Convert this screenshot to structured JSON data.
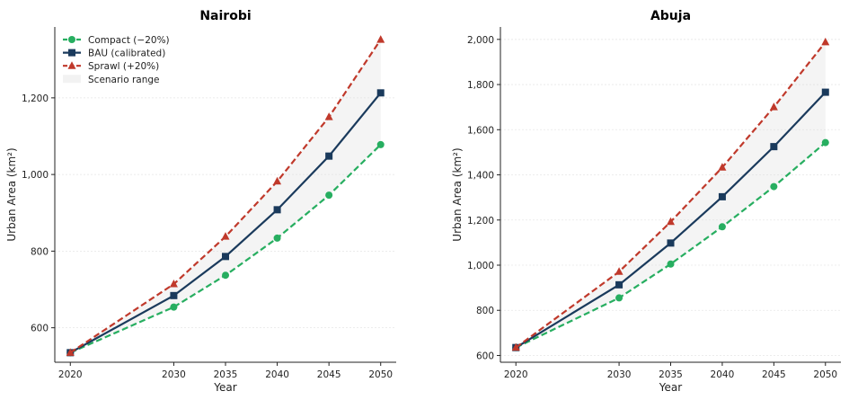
{
  "chart_data": [
    {
      "type": "line",
      "title": "Nairobi",
      "xlabel": "Year",
      "ylabel": "Urban Area (km²)",
      "x": [
        2020,
        2030,
        2035,
        2040,
        2045,
        2050
      ],
      "xticks": [
        "2020",
        "2030",
        "2035",
        "2040",
        "2045",
        "2050"
      ],
      "yticks": [
        600,
        800,
        1000,
        1200
      ],
      "ytick_labels": [
        "600",
        "800",
        "1,000",
        "1,200"
      ],
      "ylim": [
        510,
        1385
      ],
      "xlim": [
        2018.5,
        2051.5
      ],
      "grid": "horizontal",
      "legend_position": "top-left",
      "shaded_band": "Scenario range",
      "series": [
        {
          "name": "Compact (−20%)",
          "values": [
            535,
            654,
            737,
            834,
            946,
            1078
          ],
          "color": "#27ae60",
          "marker": "circle",
          "dash": true
        },
        {
          "name": "BAU (calibrated)",
          "values": [
            535,
            684,
            786,
            908,
            1048,
            1213
          ],
          "color": "#1a3a5c",
          "marker": "square",
          "dash": false
        },
        {
          "name": "Sprawl (+20%)",
          "values": [
            535,
            714,
            838,
            982,
            1150,
            1352
          ],
          "color": "#c0392b",
          "marker": "triangle",
          "dash": true
        }
      ]
    },
    {
      "type": "line",
      "title": "Abuja",
      "xlabel": "Year",
      "ylabel": "Urban Area (km²)",
      "x": [
        2020,
        2030,
        2035,
        2040,
        2045,
        2050
      ],
      "xticks": [
        "2020",
        "2030",
        "2035",
        "2040",
        "2045",
        "2050"
      ],
      "yticks": [
        600,
        800,
        1000,
        1200,
        1400,
        1600,
        1800,
        2000
      ],
      "ytick_labels": [
        "600",
        "800",
        "1,000",
        "1,200",
        "1,400",
        "1,600",
        "1,800",
        "2,000"
      ],
      "ylim": [
        570,
        2055
      ],
      "xlim": [
        2018.5,
        2051.5
      ],
      "grid": "horizontal",
      "series": [
        {
          "name": "Compact (−20%)",
          "values": [
            635,
            855,
            1005,
            1170,
            1348,
            1543
          ],
          "color": "#27ae60",
          "marker": "circle",
          "dash": true
        },
        {
          "name": "BAU (calibrated)",
          "values": [
            635,
            913,
            1098,
            1303,
            1525,
            1766
          ],
          "color": "#1a3a5c",
          "marker": "square",
          "dash": false
        },
        {
          "name": "Sprawl (+20%)",
          "values": [
            635,
            971,
            1192,
            1433,
            1700,
            1988
          ],
          "color": "#c0392b",
          "marker": "triangle",
          "dash": true
        }
      ]
    }
  ]
}
